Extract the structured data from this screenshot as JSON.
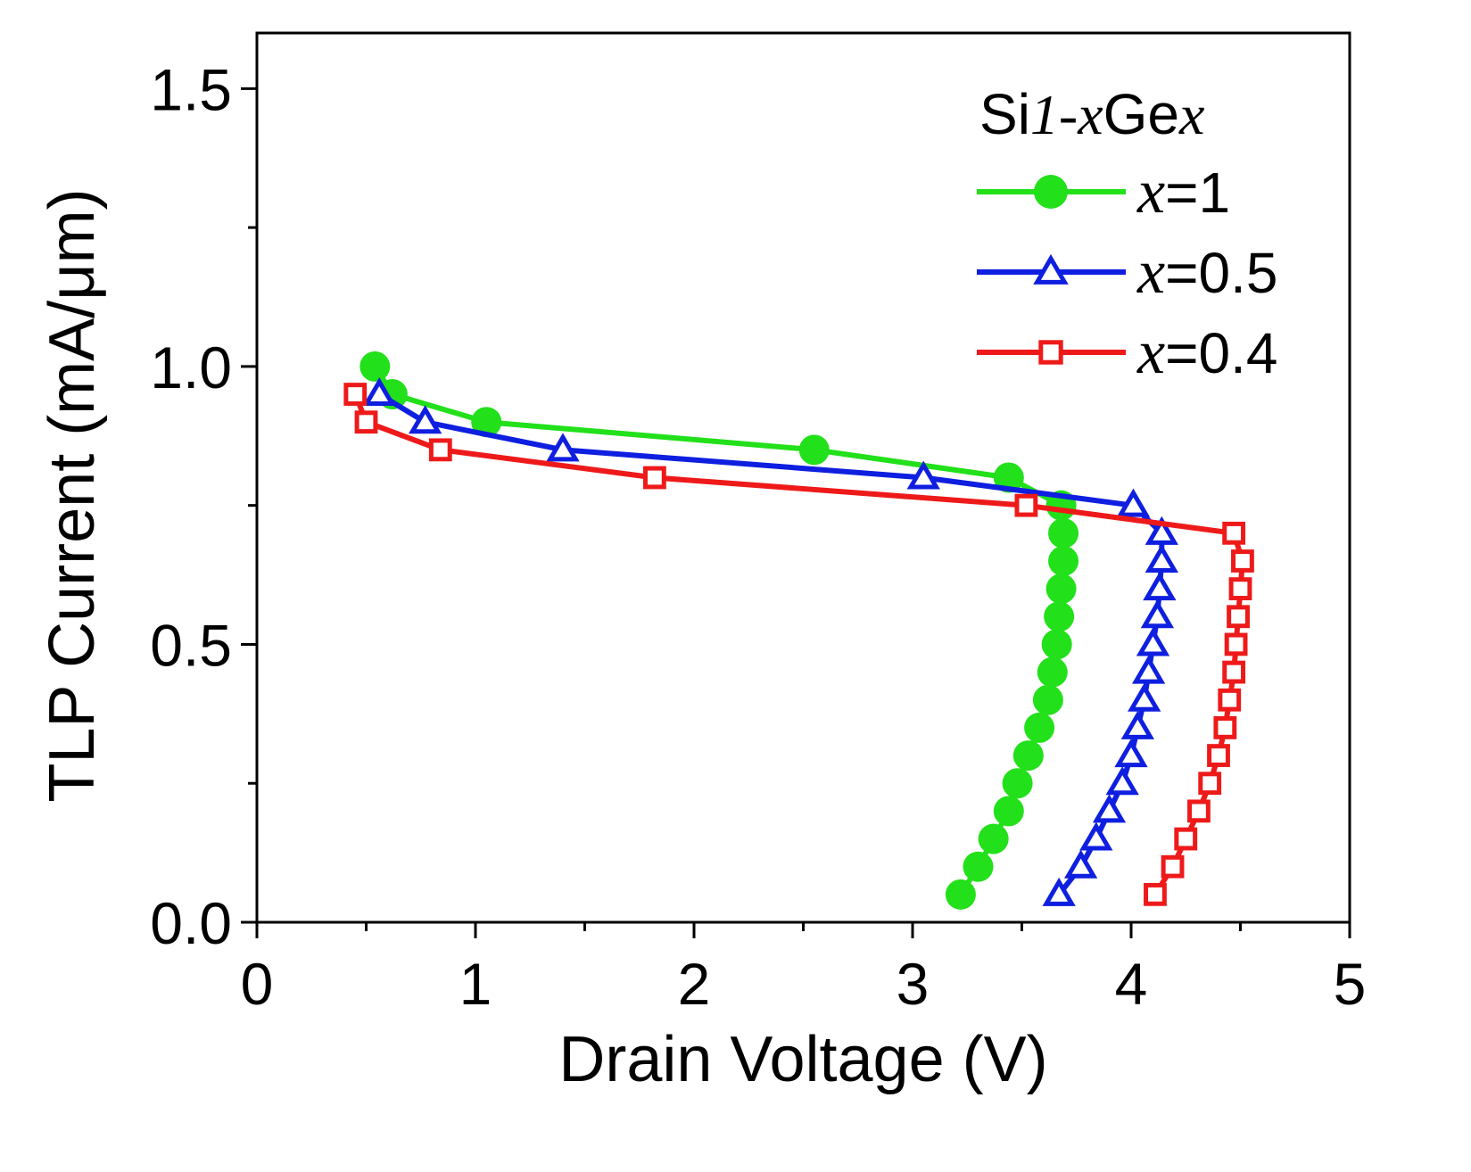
{
  "chart_data": {
    "type": "scatter",
    "xlabel": "Drain Voltage (V)",
    "ylabel": "TLP Current (mA/μm)",
    "xlim": [
      0,
      5
    ],
    "ylim": [
      0,
      1.6
    ],
    "x_ticks": [
      "0",
      "1",
      "2",
      "3",
      "4",
      "5"
    ],
    "y_ticks": [
      "0.0",
      "0.5",
      "1.0",
      "1.5"
    ],
    "grid": false,
    "legend": {
      "position": "top-right",
      "title_prefix": "Si",
      "title_sub1": "1-",
      "title_x1": "x",
      "title_mid": "Ge",
      "title_x2": "x"
    },
    "series": [
      {
        "name": "x=1",
        "label_var": "x",
        "label_value": "=1",
        "color": "#22e01a",
        "marker": "circle",
        "points": [
          [
            3.22,
            0.05
          ],
          [
            3.3,
            0.1
          ],
          [
            3.37,
            0.15
          ],
          [
            3.44,
            0.2
          ],
          [
            3.48,
            0.25
          ],
          [
            3.53,
            0.3
          ],
          [
            3.58,
            0.35
          ],
          [
            3.62,
            0.4
          ],
          [
            3.64,
            0.45
          ],
          [
            3.66,
            0.5
          ],
          [
            3.67,
            0.55
          ],
          [
            3.68,
            0.6
          ],
          [
            3.69,
            0.65
          ],
          [
            3.69,
            0.7
          ],
          [
            3.68,
            0.75
          ],
          [
            3.44,
            0.8
          ],
          [
            2.55,
            0.85
          ],
          [
            1.05,
            0.9
          ],
          [
            0.62,
            0.95
          ],
          [
            0.54,
            1.0
          ]
        ]
      },
      {
        "name": "x=0.5",
        "label_var": "x",
        "label_value": "=0.5",
        "color": "#0f1fe0",
        "marker": "triangle",
        "points": [
          [
            3.67,
            0.05
          ],
          [
            3.77,
            0.1
          ],
          [
            3.84,
            0.15
          ],
          [
            3.9,
            0.2
          ],
          [
            3.96,
            0.25
          ],
          [
            4.0,
            0.3
          ],
          [
            4.03,
            0.35
          ],
          [
            4.06,
            0.4
          ],
          [
            4.08,
            0.45
          ],
          [
            4.1,
            0.5
          ],
          [
            4.12,
            0.55
          ],
          [
            4.13,
            0.6
          ],
          [
            4.14,
            0.65
          ],
          [
            4.14,
            0.7
          ],
          [
            4.01,
            0.75
          ],
          [
            3.05,
            0.8
          ],
          [
            1.4,
            0.85
          ],
          [
            0.77,
            0.9
          ],
          [
            0.56,
            0.95
          ]
        ]
      },
      {
        "name": "x=0.4",
        "label_var": "x",
        "label_value": "=0.4",
        "color": "#ee1a1a",
        "marker": "square",
        "points": [
          [
            4.11,
            0.05
          ],
          [
            4.19,
            0.1
          ],
          [
            4.25,
            0.15
          ],
          [
            4.31,
            0.2
          ],
          [
            4.36,
            0.25
          ],
          [
            4.4,
            0.3
          ],
          [
            4.43,
            0.35
          ],
          [
            4.45,
            0.4
          ],
          [
            4.47,
            0.45
          ],
          [
            4.48,
            0.5
          ],
          [
            4.49,
            0.55
          ],
          [
            4.5,
            0.6
          ],
          [
            4.51,
            0.65
          ],
          [
            4.47,
            0.7
          ],
          [
            3.52,
            0.75
          ],
          [
            1.82,
            0.8
          ],
          [
            0.84,
            0.85
          ],
          [
            0.5,
            0.9
          ],
          [
            0.45,
            0.95
          ]
        ]
      }
    ]
  }
}
